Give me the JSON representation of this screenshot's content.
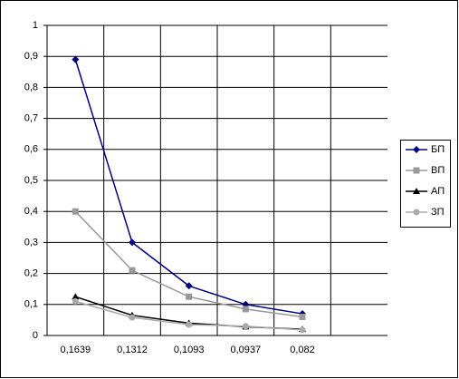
{
  "chart_data": {
    "type": "line",
    "categories": [
      "0,1639",
      "0,1312",
      "0,1093",
      "0,0937",
      "0,082",
      null
    ],
    "series": [
      {
        "name": "БП",
        "color": "#000080",
        "marker": "diamond",
        "values": [
          0.89,
          0.3,
          0.16,
          0.1,
          0.07,
          null
        ]
      },
      {
        "name": "ВП",
        "color": "#999999",
        "marker": "square",
        "values": [
          0.4,
          0.21,
          0.125,
          0.085,
          0.06,
          null
        ]
      },
      {
        "name": "АП",
        "color": "#000000",
        "marker": "triangle",
        "values": [
          0.125,
          0.065,
          0.04,
          0.028,
          0.02,
          null
        ]
      },
      {
        "name": "ЗП",
        "color": "#aaaaaa",
        "marker": "circle",
        "values": [
          0.11,
          0.058,
          0.035,
          0.03,
          0.018,
          null
        ]
      }
    ],
    "ylim": [
      0,
      1
    ],
    "yticks": [
      0,
      {
        "value": 0.1,
        "label": "0,1"
      },
      {
        "value": 0.2,
        "label": "0,2"
      },
      {
        "value": 0.3,
        "label": "0,3"
      },
      {
        "value": 0.4,
        "label": "0,4"
      },
      {
        "value": 0.5,
        "label": "0,5"
      },
      {
        "value": 0.6,
        "label": "0,6"
      },
      {
        "value": 0.7,
        "label": "0,7"
      },
      {
        "value": 0.8,
        "label": "0,8"
      },
      {
        "value": 0.9,
        "label": "0,9"
      },
      1
    ],
    "grid": true,
    "legend": "right"
  }
}
